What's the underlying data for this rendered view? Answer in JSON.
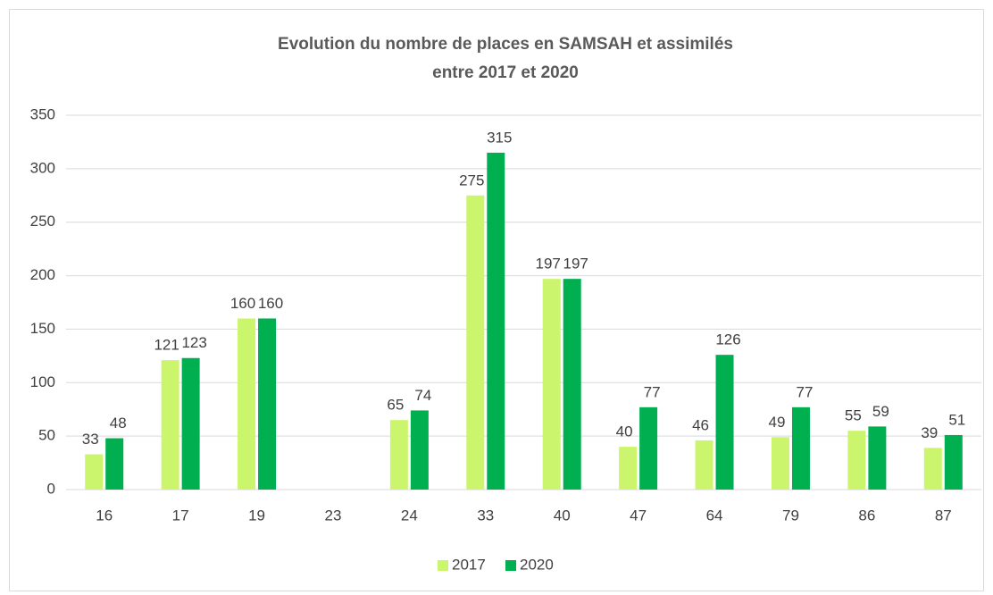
{
  "chart_data": {
    "type": "bar",
    "title": [
      "Evolution du nombre de places en SAMSAH et assimilés",
      "entre 2017 et 2020"
    ],
    "categories": [
      "16",
      "17",
      "19",
      "23",
      "24",
      "33",
      "40",
      "47",
      "64",
      "79",
      "86",
      "87"
    ],
    "series": [
      {
        "name": "2017",
        "color": "#ccf56e",
        "values": [
          33,
          121,
          160,
          null,
          65,
          275,
          197,
          40,
          46,
          49,
          55,
          39
        ]
      },
      {
        "name": "2020",
        "color": "#00b050",
        "values": [
          48,
          123,
          160,
          null,
          74,
          315,
          197,
          77,
          126,
          77,
          59,
          51
        ]
      }
    ],
    "ylim": [
      0,
      350
    ],
    "yticks": [
      0,
      50,
      100,
      150,
      200,
      250,
      300,
      350
    ],
    "grid": true,
    "legend": "bottom"
  }
}
